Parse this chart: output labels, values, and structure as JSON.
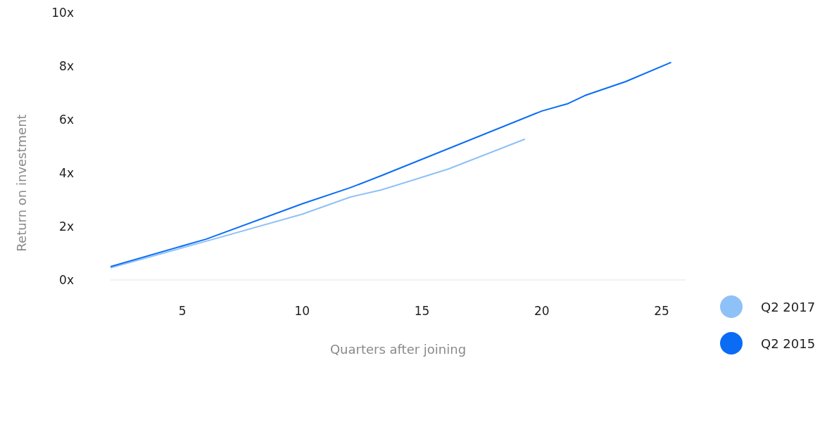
{
  "chart_data": {
    "type": "line",
    "xlabel": "Quarters after joining",
    "ylabel": "Return on investment",
    "xlim": [
      2,
      26
    ],
    "xticks": [
      5,
      10,
      15,
      20,
      25
    ],
    "ylim": [
      0,
      10
    ],
    "yticks": [
      {
        "value": 0,
        "label": "0x"
      },
      {
        "value": 2,
        "label": "2x"
      },
      {
        "value": 4,
        "label": "4x"
      },
      {
        "value": 6,
        "label": "6x"
      },
      {
        "value": 8,
        "label": "8x"
      },
      {
        "value": 10,
        "label": "10x"
      }
    ],
    "grid": false,
    "legend": "bottom right",
    "marker": "none",
    "line_style": "solid",
    "series": [
      {
        "name": "Q2 2017",
        "color": "#8ec1f7",
        "x": [
          2,
          6,
          10,
          12,
          13.3,
          15,
          16.1,
          19.3
        ],
        "values": [
          0.45,
          1.45,
          2.46,
          3.1,
          3.37,
          3.84,
          4.15,
          5.27
        ]
      },
      {
        "name": "Q2 2015",
        "color": "#0a6cf5",
        "x": [
          2,
          6,
          10,
          12,
          13.3,
          20,
          21.1,
          21.8,
          23.5,
          25.4
        ],
        "values": [
          0.5,
          1.53,
          2.85,
          3.45,
          3.9,
          6.32,
          6.6,
          6.9,
          7.42,
          8.14
        ]
      }
    ]
  }
}
